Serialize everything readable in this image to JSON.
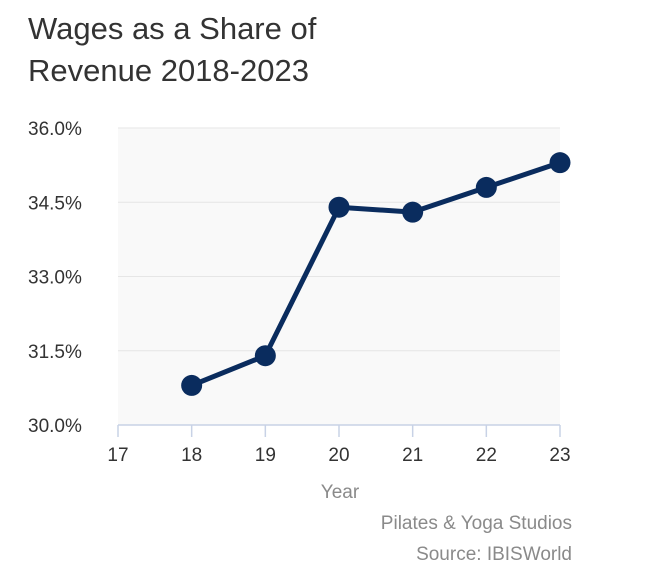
{
  "chart_data": {
    "type": "line",
    "title": "Wages as a Share of Revenue 2018-2023",
    "title_lines": [
      "Wages as a Share of",
      "Revenue 2018-2023"
    ],
    "x": [
      18,
      19,
      20,
      21,
      22,
      23
    ],
    "xticks": [
      "17",
      "18",
      "19",
      "20",
      "21",
      "22",
      "23"
    ],
    "xlim": [
      17,
      23
    ],
    "yticks": [
      "30.0%",
      "31.5%",
      "33.0%",
      "34.5%",
      "36.0%"
    ],
    "ytick_values": [
      30.0,
      31.5,
      33.0,
      34.5,
      36.0
    ],
    "ylim": [
      30.0,
      36.0
    ],
    "series": [
      {
        "name": "Wages as a Share of Revenue",
        "values": [
          30.8,
          31.4,
          34.4,
          34.3,
          34.8,
          35.3
        ]
      }
    ],
    "xlabel": "Year",
    "ylabel": "",
    "grid": true,
    "colors": {
      "line": "#0a2c5e",
      "plot_bg": "#f9f9f9",
      "grid": "#e6e6e6",
      "axis": "#c8d2e6"
    }
  },
  "footer": {
    "subtitle": "Pilates & Yoga Studios",
    "source": "Source: IBISWorld"
  }
}
